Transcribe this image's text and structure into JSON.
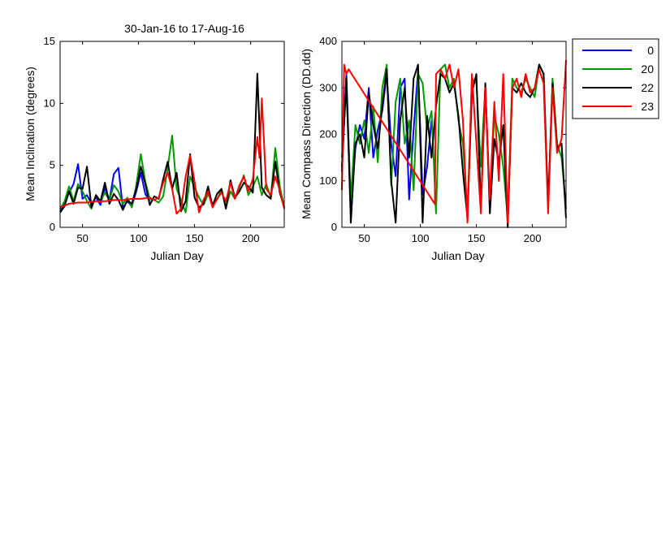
{
  "colors": {
    "0": "#0000ff",
    "20": "#009900",
    "22": "#000000",
    "23": "#ff0000"
  },
  "chart_data": [
    {
      "type": "line",
      "title": "30-Jan-16 to 17-Aug-16",
      "xlabel": "Julian Day",
      "ylabel": "Mean Inclination  (degrees)",
      "xlim": [
        30,
        230
      ],
      "ylim": [
        0,
        15
      ],
      "xticks": [
        50,
        100,
        150,
        200
      ],
      "yticks": [
        0,
        5,
        10,
        15
      ],
      "grid": false,
      "series": [
        {
          "name": "0",
          "color": "#0000ff",
          "x": [
            30,
            34,
            38,
            42,
            46,
            50,
            54,
            58,
            62,
            66,
            70,
            74,
            78,
            82,
            86,
            90,
            94,
            98,
            102,
            106,
            110
          ],
          "y": [
            1.3,
            1.9,
            2.8,
            3.5,
            5.1,
            2.3,
            2.6,
            1.9,
            2.4,
            1.8,
            3.2,
            2.2,
            4.3,
            4.8,
            1.6,
            2.1,
            1.7,
            2.9,
            4.4,
            2.7,
            2.1
          ]
        },
        {
          "name": "20",
          "color": "#009900",
          "x": [
            30,
            34,
            38,
            42,
            46,
            50,
            54,
            58,
            62,
            66,
            70,
            74,
            78,
            82,
            86,
            90,
            94,
            98,
            102,
            106,
            110,
            114,
            118,
            122,
            126,
            130,
            134,
            138,
            142,
            146,
            150,
            154,
            158,
            162,
            166,
            170,
            174,
            178,
            182,
            186,
            190,
            194,
            198,
            202,
            206,
            210,
            214,
            218,
            222,
            226,
            230
          ],
          "y": [
            1.5,
            2.1,
            3.3,
            2.1,
            3.5,
            2.9,
            2.1,
            1.5,
            2.6,
            2.1,
            2.8,
            2.2,
            3.4,
            2.9,
            1.9,
            2.4,
            1.6,
            3.4,
            5.9,
            3.7,
            2.3,
            2.2,
            2.0,
            2.5,
            4.8,
            7.4,
            3.1,
            2.2,
            1.2,
            4.1,
            3.2,
            2.4,
            1.8,
            2.7,
            1.9,
            2.2,
            3.1,
            1.6,
            2.9,
            2.3,
            3.2,
            4.2,
            2.6,
            3.3,
            4.1,
            2.6,
            3.5,
            2.4,
            6.4,
            3.3,
            1.6
          ]
        },
        {
          "name": "22",
          "color": "#000000",
          "x": [
            30,
            34,
            38,
            42,
            46,
            50,
            54,
            58,
            62,
            66,
            70,
            74,
            78,
            82,
            86,
            90,
            94,
            98,
            102,
            106,
            110,
            114,
            118,
            122,
            126,
            130,
            134,
            138,
            142,
            146,
            150,
            154,
            158,
            162,
            166,
            170,
            174,
            178,
            182,
            186,
            190,
            194,
            198,
            202,
            206,
            210,
            214,
            218,
            222,
            226,
            230
          ],
          "y": [
            1.2,
            1.7,
            2.9,
            1.9,
            3.2,
            3.1,
            4.9,
            1.6,
            2.6,
            2.1,
            3.6,
            1.9,
            2.7,
            2.2,
            1.4,
            2.2,
            1.9,
            3.1,
            4.9,
            3.5,
            1.8,
            2.5,
            2.3,
            3.9,
            5.3,
            3.1,
            4.4,
            1.3,
            2.1,
            5.9,
            2.4,
            1.6,
            1.9,
            3.3,
            1.7,
            2.7,
            3.1,
            1.5,
            3.8,
            2.4,
            2.9,
            3.6,
            3.3,
            2.8,
            12.4,
            3.2,
            2.6,
            2.3,
            5.3,
            2.8,
            1.6
          ]
        },
        {
          "name": "23",
          "color": "#ff0000",
          "x": [
            30,
            38,
            46,
            54,
            62,
            70,
            78,
            86,
            94,
            102,
            110,
            114,
            118,
            122,
            126,
            130,
            134,
            138,
            142,
            146,
            150,
            154,
            158,
            162,
            166,
            170,
            174,
            178,
            182,
            186,
            190,
            194,
            198,
            202,
            206,
            208,
            210,
            214,
            218,
            222,
            226,
            230
          ],
          "y": [
            1.6,
            1.9,
            2.0,
            2.0,
            2.1,
            2.1,
            2.2,
            2.2,
            2.3,
            2.3,
            2.4,
            2.2,
            2.4,
            3.6,
            4.4,
            3.1,
            1.1,
            1.5,
            4.1,
            5.8,
            3.7,
            1.2,
            2.2,
            2.9,
            1.6,
            2.3,
            2.8,
            2.1,
            3.6,
            2.3,
            3.4,
            4.1,
            2.9,
            3.9,
            7.3,
            5.6,
            10.4,
            3.1,
            2.6,
            4.1,
            3.0,
            1.5
          ]
        }
      ]
    },
    {
      "type": "line",
      "xlabel": "Julian Day",
      "ylabel": "Mean Compass Direction (DD.dd)",
      "xlim": [
        30,
        230
      ],
      "ylim": [
        0,
        400
      ],
      "xticks": [
        50,
        100,
        150,
        200
      ],
      "yticks": [
        0,
        100,
        200,
        300,
        400
      ],
      "grid": false,
      "legend": {
        "position": "outside-top-right",
        "entries": [
          "0",
          "20",
          "22",
          "23"
        ]
      },
      "series": [
        {
          "name": "0",
          "color": "#0000ff",
          "x": [
            30,
            34,
            38,
            42,
            46,
            50,
            54,
            58,
            62,
            66,
            70,
            74,
            78,
            82,
            86,
            90,
            94,
            98,
            102,
            106,
            110
          ],
          "y": [
            120,
            330,
            40,
            170,
            220,
            190,
            300,
            150,
            210,
            250,
            330,
            180,
            110,
            300,
            320,
            60,
            210,
            340,
            70,
            130,
            230
          ]
        },
        {
          "name": "20",
          "color": "#009900",
          "x": [
            30,
            34,
            38,
            42,
            46,
            50,
            54,
            58,
            62,
            66,
            70,
            74,
            78,
            82,
            86,
            90,
            94,
            98,
            102,
            106,
            110,
            114,
            118,
            122,
            126,
            130,
            134,
            138,
            142,
            146,
            150,
            154,
            158,
            162,
            166,
            170,
            174,
            178,
            182,
            186,
            190,
            194,
            198,
            202,
            206,
            210,
            214,
            218,
            222,
            226,
            230
          ],
          "y": [
            150,
            300,
            60,
            220,
            180,
            230,
            160,
            260,
            140,
            300,
            350,
            90,
            270,
            320,
            180,
            230,
            80,
            330,
            310,
            210,
            250,
            30,
            340,
            350,
            300,
            320,
            230,
            180,
            30,
            320,
            310,
            130,
            300,
            50,
            240,
            200,
            130,
            20,
            320,
            300,
            290,
            320,
            300,
            280,
            350,
            330,
            40,
            320,
            180,
            150,
            40
          ]
        },
        {
          "name": "22",
          "color": "#000000",
          "x": [
            30,
            34,
            38,
            42,
            46,
            50,
            54,
            58,
            62,
            66,
            70,
            74,
            78,
            82,
            86,
            90,
            94,
            98,
            102,
            106,
            110,
            114,
            118,
            122,
            126,
            130,
            134,
            138,
            142,
            146,
            150,
            154,
            158,
            162,
            166,
            170,
            174,
            178,
            182,
            186,
            190,
            194,
            198,
            202,
            206,
            210,
            214,
            218,
            222,
            226,
            230
          ],
          "y": [
            130,
            320,
            10,
            180,
            200,
            150,
            290,
            220,
            170,
            260,
            340,
            100,
            10,
            230,
            300,
            150,
            320,
            350,
            10,
            240,
            150,
            260,
            330,
            320,
            290,
            310,
            240,
            120,
            20,
            290,
            330,
            40,
            310,
            30,
            190,
            140,
            220,
            0,
            300,
            290,
            310,
            290,
            280,
            300,
            350,
            330,
            50,
            310,
            170,
            180,
            20
          ]
        },
        {
          "name": "23",
          "color": "#ff0000",
          "x": [
            30,
            32,
            34,
            36,
            113,
            114,
            118,
            122,
            126,
            130,
            134,
            138,
            142,
            146,
            150,
            154,
            158,
            162,
            166,
            170,
            174,
            178,
            182,
            186,
            190,
            194,
            198,
            202,
            206,
            210,
            214,
            218,
            222,
            226,
            230
          ],
          "y": [
            80,
            350,
            330,
            340,
            50,
            330,
            340,
            320,
            350,
            300,
            340,
            230,
            10,
            330,
            180,
            30,
            300,
            60,
            270,
            100,
            330,
            10,
            300,
            320,
            280,
            330,
            290,
            300,
            340,
            310,
            30,
            300,
            160,
            190,
            360
          ]
        }
      ]
    }
  ]
}
